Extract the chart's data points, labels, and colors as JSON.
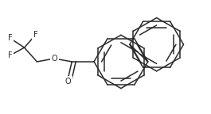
{
  "bg_color": "#ffffff",
  "line_color": "#2a2a2a",
  "line_width": 1.1,
  "font_size": 7.0,
  "figsize": [
    2.65,
    1.44
  ],
  "dpi": 100,
  "xlim": [
    0,
    265
  ],
  "ylim": [
    0,
    144
  ]
}
